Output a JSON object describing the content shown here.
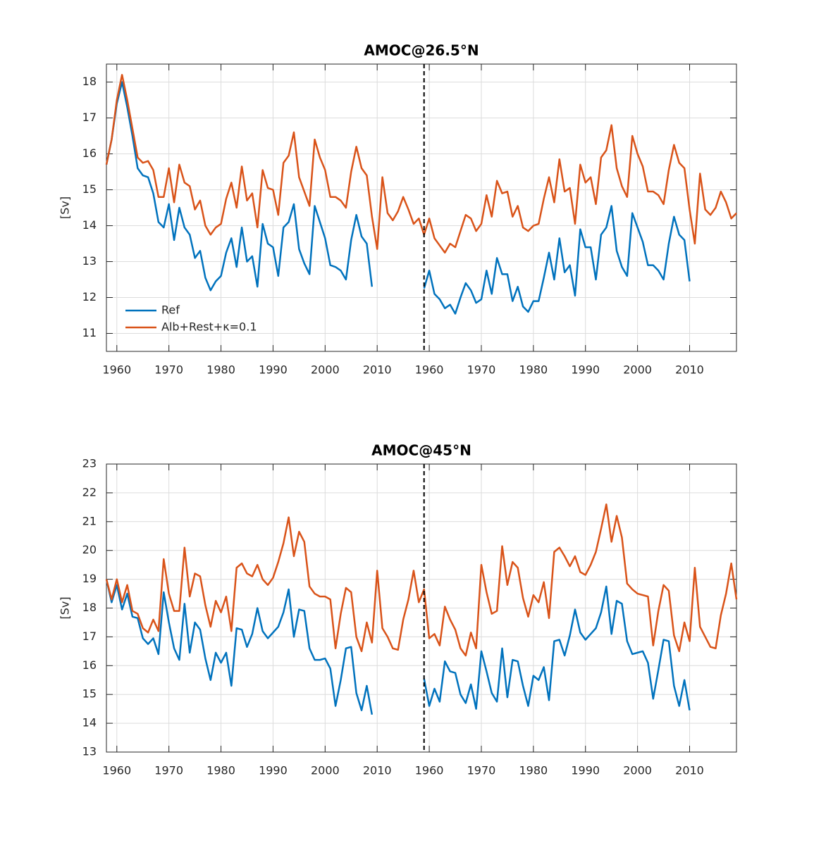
{
  "chart_data": [
    {
      "type": "line",
      "title": "AMOC@26.5°N",
      "y_label": "[Sv]",
      "grid": true,
      "legend": "lower left",
      "xlim": [
        1958,
        2079
      ],
      "ylim": [
        10.5,
        18.5
      ],
      "xticks": [
        1960,
        1970,
        1980,
        1990,
        2000,
        2010,
        {
          "value": 2020,
          "label": "1960"
        },
        {
          "value": 2030,
          "label": "1970"
        },
        {
          "value": 2040,
          "label": "1980"
        },
        {
          "value": 2050,
          "label": "1990"
        },
        {
          "value": 2060,
          "label": "2000"
        },
        {
          "value": 2070,
          "label": "2010"
        }
      ],
      "yticks": [
        11,
        12,
        13,
        14,
        15,
        16,
        17,
        18
      ],
      "vline": 2019,
      "x": [
        1958,
        1959,
        1960,
        1961,
        1962,
        1963,
        1964,
        1965,
        1966,
        1967,
        1968,
        1969,
        1970,
        1971,
        1972,
        1973,
        1974,
        1975,
        1976,
        1977,
        1978,
        1979,
        1980,
        1981,
        1982,
        1983,
        1984,
        1985,
        1986,
        1987,
        1988,
        1989,
        1990,
        1991,
        1992,
        1993,
        1994,
        1995,
        1996,
        1997,
        1998,
        1999,
        2000,
        2001,
        2002,
        2003,
        2004,
        2005,
        2006,
        2007,
        2008,
        2009,
        2010,
        2011,
        2012,
        2013,
        2014,
        2015,
        2016,
        2017,
        2018,
        2019,
        2020,
        2021,
        2022,
        2023,
        2024,
        2025,
        2026,
        2027,
        2028,
        2029,
        2030,
        2031,
        2032,
        2033,
        2034,
        2035,
        2036,
        2037,
        2038,
        2039,
        2040,
        2041,
        2042,
        2043,
        2044,
        2045,
        2046,
        2047,
        2048,
        2049,
        2050,
        2051,
        2052,
        2053,
        2054,
        2055,
        2056,
        2057,
        2058,
        2059,
        2060,
        2061,
        2062,
        2063,
        2064,
        2065,
        2066,
        2067,
        2068,
        2069,
        2070,
        2071,
        2072,
        2073,
        2074,
        2075,
        2076,
        2077,
        2078,
        2079
      ],
      "series": [
        {
          "name": "Ref",
          "color": "#0072bd",
          "values": [
            15.7,
            16.4,
            17.4,
            18.0,
            17.3,
            16.5,
            15.6,
            15.4,
            15.35,
            14.9,
            14.1,
            13.95,
            14.6,
            13.6,
            14.5,
            13.95,
            13.75,
            13.1,
            13.3,
            12.55,
            12.2,
            12.45,
            12.6,
            13.25,
            13.65,
            12.85,
            13.95,
            13.0,
            13.15,
            12.3,
            14.05,
            13.5,
            13.4,
            12.6,
            13.95,
            14.1,
            14.6,
            13.35,
            12.95,
            12.65,
            14.55,
            14.1,
            13.65,
            12.9,
            12.85,
            12.75,
            12.5,
            13.6,
            14.3,
            13.7,
            13.5,
            12.3,
            null,
            null,
            null,
            null,
            null,
            null,
            null,
            null,
            null,
            12.25,
            12.75,
            12.1,
            11.95,
            11.7,
            11.8,
            11.55,
            12.0,
            12.4,
            12.2,
            11.85,
            11.95,
            12.75,
            12.1,
            13.1,
            12.65,
            12.65,
            11.9,
            12.3,
            11.75,
            11.6,
            11.9,
            11.9,
            12.55,
            13.25,
            12.5,
            13.65,
            12.7,
            12.9,
            12.05,
            13.9,
            13.4,
            13.4,
            12.5,
            13.75,
            13.95,
            14.55,
            13.3,
            12.85,
            12.6,
            14.35,
            13.95,
            13.55,
            12.9,
            12.9,
            12.75,
            12.5,
            13.5,
            14.25,
            13.75,
            13.6,
            12.45,
            null,
            null,
            null,
            null,
            null,
            null,
            null,
            null,
            null
          ]
        },
        {
          "name": "Alb+Rest+κ=0.1",
          "color": "#d95319",
          "values": [
            15.7,
            16.4,
            17.5,
            18.2,
            17.5,
            16.7,
            15.9,
            15.75,
            15.8,
            15.55,
            14.8,
            14.8,
            15.6,
            14.65,
            15.7,
            15.2,
            15.1,
            14.45,
            14.7,
            14.0,
            13.75,
            13.95,
            14.05,
            14.75,
            15.2,
            14.5,
            15.65,
            14.7,
            14.9,
            13.95,
            15.55,
            15.05,
            15.0,
            14.3,
            15.75,
            15.95,
            16.6,
            15.35,
            14.95,
            14.55,
            16.4,
            15.9,
            15.55,
            14.8,
            14.8,
            14.7,
            14.5,
            15.5,
            16.2,
            15.6,
            15.4,
            14.25,
            13.35,
            15.35,
            14.35,
            14.15,
            14.4,
            14.8,
            14.45,
            14.05,
            14.2,
            13.75,
            14.2,
            13.65,
            13.45,
            13.25,
            13.5,
            13.4,
            13.85,
            14.3,
            14.2,
            13.85,
            14.05,
            14.85,
            14.25,
            15.25,
            14.9,
            14.95,
            14.25,
            14.55,
            13.95,
            13.85,
            14.0,
            14.05,
            14.75,
            15.35,
            14.65,
            15.85,
            14.95,
            15.05,
            14.05,
            15.7,
            15.2,
            15.35,
            14.6,
            15.9,
            16.1,
            16.8,
            15.6,
            15.1,
            14.8,
            16.5,
            16.0,
            15.65,
            14.95,
            14.95,
            14.85,
            14.6,
            15.55,
            16.25,
            15.75,
            15.6,
            14.45,
            13.5,
            15.45,
            14.45,
            14.3,
            14.5,
            14.95,
            14.65,
            14.2,
            14.35
          ]
        }
      ]
    },
    {
      "type": "line",
      "title": "AMOC@45°N",
      "y_label": "[Sv]",
      "grid": true,
      "xlim": [
        1958,
        2079
      ],
      "ylim": [
        13,
        23
      ],
      "xticks": [
        1960,
        1970,
        1980,
        1990,
        2000,
        2010,
        {
          "value": 2020,
          "label": "1960"
        },
        {
          "value": 2030,
          "label": "1970"
        },
        {
          "value": 2040,
          "label": "1980"
        },
        {
          "value": 2050,
          "label": "1990"
        },
        {
          "value": 2060,
          "label": "2000"
        },
        {
          "value": 2070,
          "label": "2010"
        }
      ],
      "yticks": [
        13,
        14,
        15,
        16,
        17,
        18,
        19,
        20,
        21,
        22,
        23
      ],
      "vline": 2019,
      "x": [
        1958,
        1959,
        1960,
        1961,
        1962,
        1963,
        1964,
        1965,
        1966,
        1967,
        1968,
        1969,
        1970,
        1971,
        1972,
        1973,
        1974,
        1975,
        1976,
        1977,
        1978,
        1979,
        1980,
        1981,
        1982,
        1983,
        1984,
        1985,
        1986,
        1987,
        1988,
        1989,
        1990,
        1991,
        1992,
        1993,
        1994,
        1995,
        1996,
        1997,
        1998,
        1999,
        2000,
        2001,
        2002,
        2003,
        2004,
        2005,
        2006,
        2007,
        2008,
        2009,
        2010,
        2011,
        2012,
        2013,
        2014,
        2015,
        2016,
        2017,
        2018,
        2019,
        2020,
        2021,
        2022,
        2023,
        2024,
        2025,
        2026,
        2027,
        2028,
        2029,
        2030,
        2031,
        2032,
        2033,
        2034,
        2035,
        2036,
        2037,
        2038,
        2039,
        2040,
        2041,
        2042,
        2043,
        2044,
        2045,
        2046,
        2047,
        2048,
        2049,
        2050,
        2051,
        2052,
        2053,
        2054,
        2055,
        2056,
        2057,
        2058,
        2059,
        2060,
        2061,
        2062,
        2063,
        2064,
        2065,
        2066,
        2067,
        2068,
        2069,
        2070,
        2071,
        2072,
        2073,
        2074,
        2075,
        2076,
        2077,
        2078,
        2079
      ],
      "series": [
        {
          "color": "#0072bd",
          "values": [
            19.0,
            18.2,
            18.8,
            17.95,
            18.5,
            17.7,
            17.65,
            16.95,
            16.75,
            16.95,
            16.4,
            18.55,
            17.5,
            16.6,
            16.2,
            18.15,
            16.45,
            17.5,
            17.25,
            16.25,
            15.5,
            16.45,
            16.1,
            16.45,
            15.3,
            17.3,
            17.25,
            16.65,
            17.1,
            18.0,
            17.2,
            16.95,
            17.15,
            17.35,
            17.85,
            18.65,
            17.0,
            17.95,
            17.9,
            16.6,
            16.2,
            16.2,
            16.25,
            15.9,
            14.6,
            15.5,
            16.6,
            16.65,
            15.05,
            14.45,
            15.3,
            14.3,
            null,
            null,
            null,
            null,
            null,
            null,
            null,
            null,
            null,
            15.55,
            14.6,
            15.2,
            14.75,
            16.15,
            15.8,
            15.75,
            15.0,
            14.7,
            15.35,
            14.5,
            16.5,
            15.8,
            15.05,
            14.75,
            16.6,
            14.9,
            16.2,
            16.15,
            15.3,
            14.6,
            15.65,
            15.5,
            15.95,
            14.8,
            16.85,
            16.9,
            16.35,
            17.05,
            17.95,
            17.15,
            16.9,
            17.1,
            17.3,
            17.85,
            18.75,
            17.1,
            18.25,
            18.15,
            16.85,
            16.4,
            16.45,
            16.5,
            16.1,
            14.85,
            15.85,
            16.9,
            16.85,
            15.3,
            14.6,
            15.5,
            14.45,
            null,
            null,
            null,
            null,
            null,
            null,
            null,
            null,
            null
          ]
        },
        {
          "color": "#d95319",
          "values": [
            19.0,
            18.3,
            19.0,
            18.2,
            18.8,
            17.9,
            17.8,
            17.3,
            17.15,
            17.6,
            17.2,
            19.7,
            18.5,
            17.9,
            17.9,
            20.1,
            18.4,
            19.2,
            19.1,
            18.1,
            17.35,
            18.25,
            17.85,
            18.4,
            17.2,
            19.4,
            19.55,
            19.2,
            19.1,
            19.5,
            19.0,
            18.8,
            19.05,
            19.6,
            20.25,
            21.15,
            19.8,
            20.65,
            20.3,
            18.75,
            18.5,
            18.4,
            18.4,
            18.3,
            16.6,
            17.8,
            18.7,
            18.55,
            17.0,
            16.5,
            17.5,
            16.8,
            19.3,
            17.3,
            17.0,
            16.6,
            16.55,
            17.6,
            18.3,
            19.3,
            18.2,
            18.65,
            16.95,
            17.1,
            16.7,
            18.05,
            17.6,
            17.25,
            16.6,
            16.35,
            17.15,
            16.6,
            19.5,
            18.55,
            17.8,
            17.9,
            20.15,
            18.8,
            19.6,
            19.4,
            18.35,
            17.7,
            18.45,
            18.2,
            18.9,
            17.65,
            19.95,
            20.1,
            19.8,
            19.45,
            19.8,
            19.25,
            19.15,
            19.5,
            19.95,
            20.75,
            21.6,
            20.3,
            21.2,
            20.45,
            18.85,
            18.65,
            18.5,
            18.45,
            18.4,
            16.7,
            17.9,
            18.8,
            18.6,
            17.05,
            16.5,
            17.5,
            16.85,
            19.4,
            17.35,
            17.0,
            16.65,
            16.6,
            17.75,
            18.5,
            19.55,
            18.3
          ]
        }
      ]
    }
  ]
}
